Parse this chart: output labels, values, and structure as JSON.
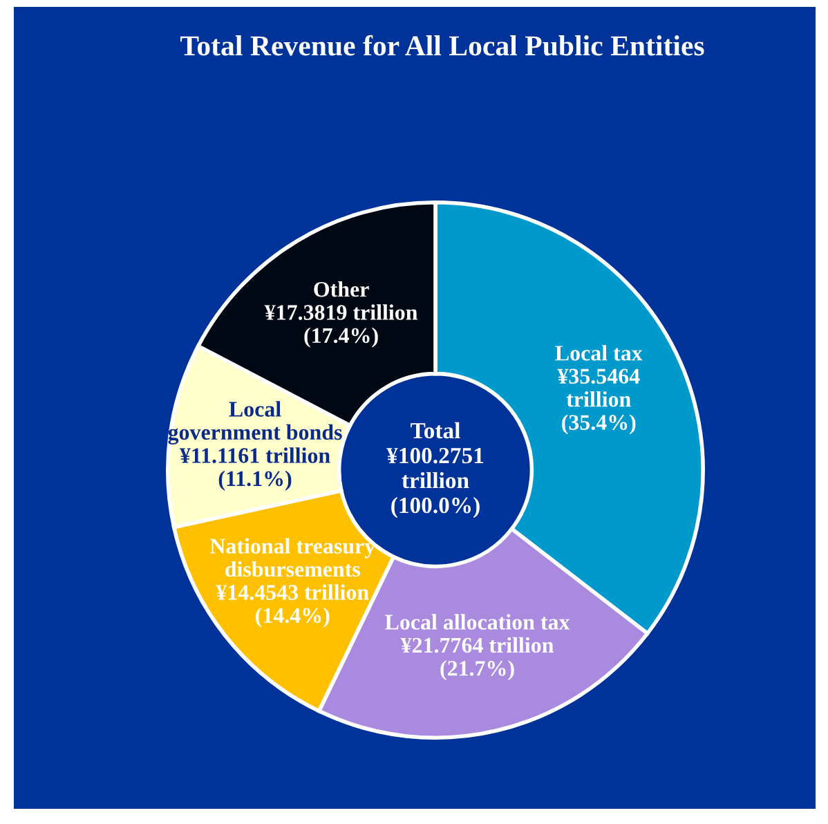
{
  "chart_data": {
    "type": "donut",
    "title": "Total Revenue for All Local Public Entities",
    "categories": [
      "Local tax",
      "Local allocation tax",
      "National treasury\ndisbursements",
      "Local\ngovernment bonds",
      "Other"
    ],
    "values": [
      35.5464,
      21.7764,
      14.4543,
      11.1161,
      17.3819
    ],
    "colors": [
      "#0099cc",
      "#a98ade",
      "#ffc000",
      "#ffffcc",
      "#000814"
    ],
    "value_labels": [
      "¥35.5464\ntrillion\n(35.4%)",
      "¥21.7764 trillion\n(21.7%)",
      "¥14.4543 trillion\n(14.4%)",
      "¥11.1161 trillion\n(11.1%)",
      "¥17.3819 trillion\n(17.4%)"
    ],
    "annotations": [
      "Total\n¥100.2751\ntrillion\n(100.0%)"
    ],
    "legend": false
  }
}
